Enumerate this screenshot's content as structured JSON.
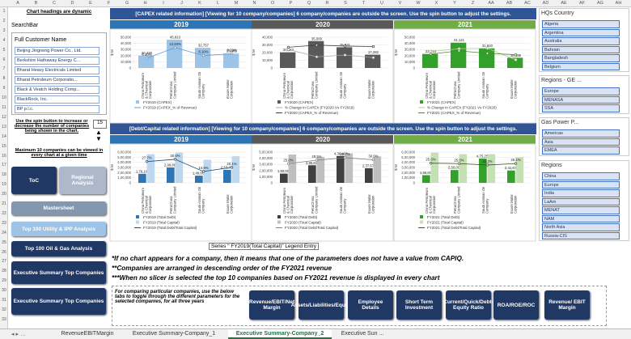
{
  "columns": [
    "A",
    "B",
    "C",
    "D",
    "E",
    "F",
    "G",
    "H",
    "I",
    "J",
    "K",
    "L",
    "M",
    "N",
    "O",
    "P",
    "Q",
    "R",
    "S",
    "T",
    "U",
    "V",
    "W",
    "X",
    "Y",
    "Z",
    "AA",
    "AB",
    "AC",
    "AD",
    "AE",
    "AF",
    "AG",
    "AH"
  ],
  "rows": [
    1,
    2,
    3,
    4,
    5,
    6,
    7,
    8,
    9,
    10,
    11,
    12,
    13,
    14,
    15,
    16,
    17,
    18,
    19,
    20,
    21,
    22,
    23,
    24,
    25,
    26,
    27,
    28,
    29,
    30,
    31,
    32,
    33
  ],
  "left_panel": {
    "note": "Chart headings are dynamic",
    "search": "SearchBar",
    "slicer_title": "Full Customer Name",
    "items": [
      "Beijing Jingneng Power Co., Ltd.",
      "Berkshire Hathaway Energy C...",
      "Bharat Heavy Electricals Limited",
      "Bharat Petroleum Corporatio...",
      "Black & Veatch Holding Comp...",
      "BlackRock, Inc.",
      "BP p.l.c."
    ],
    "spin_text": "Use the spin button to increase or decrease the number of companies being shown in the chart.",
    "spin_value": 15,
    "max_note": "Maximum 10 companies can be viewed in every chart at a given time"
  },
  "nav_buttons": [
    "ToC",
    "Regional Analysis",
    "Mastersheet",
    "Top 100 Utility & IPP Analysis",
    "Top 100 Oil & Gas Analysis",
    "Executive Summary Top Companies",
    "Executive Summary Top Companies"
  ],
  "banners": [
    "[CAPEX related information] [Viewing for 10 company/companies] 6 company/companies are outside the screen. Use the spin button to adjust the settings.",
    "[Debt/Capital related information] [Viewing for 10 company/companies] 6 company/companies are outside the screen. Use the spin button to adjust the settings."
  ],
  "chart_data": [
    {
      "type": "bar",
      "title": "2019",
      "header_color": "#2e75b6",
      "y_label": "$ M",
      "categories": [
        "China Petroleum & Chemical Corporation",
        "PetroChina Company Limited",
        "Saudi Arabian Oil Company",
        "Exxon Mobil Corporation"
      ],
      "ylim": [
        0,
        50000
      ],
      "yticks": [
        0,
        {
          "value": 10000,
          "label": "10,000"
        },
        {
          "value": 20000,
          "label": "20,000"
        },
        {
          "value": 30000,
          "label": "30,000"
        },
        {
          "value": 40000,
          "label": "40,000"
        },
        {
          "value": 50000,
          "label": "50,000"
        }
      ],
      "y2lim": [
        0,
        20
      ],
      "series": [
        {
          "name": "FY2019 (CAPEX)",
          "color": "#9dc3e6",
          "values": [
            20330,
            45913,
            32757,
            23485
          ],
          "value_labels": [
            "20,330",
            "45,913",
            "32,757",
            "23,485"
          ]
        },
        {
          "name": "FY2019 (CAPEX_% of Revenue)",
          "color": "#5b9bd5",
          "axis": "y2",
          "values": [
            6.4,
            13.2,
            8.1,
            9.2
          ],
          "value_labels": [
            "6.40%",
            "13.20%",
            "8.10%",
            "9.20%"
          ]
        }
      ]
    },
    {
      "type": "bar",
      "title": "2020",
      "header_color": "#595959",
      "y_label": "$ M",
      "categories": [
        "China Petroleum & Chemical Corporation",
        "PetroChina Company Limited",
        "Saudi Arabian Oil Company",
        "Exxon Mobil Corporation"
      ],
      "ylim": [
        0,
        40000
      ],
      "yticks": [
        0,
        {
          "value": 10000,
          "label": "10,000"
        },
        {
          "value": 20000,
          "label": "20,000"
        },
        {
          "value": 30000,
          "label": "30,000"
        },
        {
          "value": 40000,
          "label": "40,000"
        }
      ],
      "y2lim": [
        -60,
        40
      ],
      "series": [
        {
          "name": "FY2020 (CAPEX)",
          "color": "#595959",
          "values": [
            20363,
            35000,
            26931,
            17282
          ],
          "value_labels": [
            "20,363",
            "35,000",
            "26,931",
            "17,282"
          ]
        },
        {
          "name": "% Change in CAPEX (FY2020 Vs FY2019)",
          "color": "#a6a6a6",
          "axis": "y2",
          "values": [
            0.2,
            -23.8,
            -17.8,
            -26.4
          ]
        },
        {
          "name": "FY2020 (CAPEX_% of Revenue)",
          "color": "#404040",
          "axis": "y2",
          "values": [
            7.4,
            14.3,
            11.2,
            9.7
          ]
        }
      ]
    },
    {
      "type": "bar",
      "title": "2021",
      "header_color": "#70ad47",
      "y_label": "$ M",
      "categories": [
        "China Petroleum & Chemical Corporation",
        "PetroChina Company Limited",
        "Saudi Arabian Oil Company",
        "Exxon Mobil Corporation"
      ],
      "ylim": [
        0,
        50000
      ],
      "yticks": [
        0,
        {
          "value": 10000,
          "label": "10,000"
        },
        {
          "value": 20000,
          "label": "20,000"
        },
        {
          "value": 30000,
          "label": "30,000"
        },
        {
          "value": 40000,
          "label": "40,000"
        },
        {
          "value": 50000,
          "label": "50,000"
        }
      ],
      "y2lim": [
        -20,
        40
      ],
      "series": [
        {
          "name": "FY2021 (CAPEX)",
          "color": "#33a02c",
          "values": [
            22813,
            41121,
            31920,
            16595
          ],
          "value_labels": [
            "22,813",
            "41,121",
            "31,920",
            "16,595"
          ]
        },
        {
          "name": "% Change in CAPEX (FY2021 Vs FY2020)",
          "color": "#a9d18e",
          "axis": "y2",
          "values": [
            12,
            17.5,
            18.5,
            -4
          ]
        },
        {
          "name": "FY2021 (CAPEX_% of Revenue)",
          "color": "#548235",
          "axis": "y2",
          "values": [
            7.2,
            13.4,
            8.6,
            5.8
          ]
        }
      ]
    },
    {
      "type": "bar",
      "title": "2019",
      "header_color": "#2e75b6",
      "y_label": "$ M",
      "categories": [
        "China Petroleum & Chemical Corporation",
        "PetroChina Company Limited",
        "Saudi Arabian Oil Company",
        "Exxon Mobil Corporation"
      ],
      "ylim": [
        0,
        600000
      ],
      "yticks": [
        0,
        {
          "value": 100000,
          "label": "1,00,000"
        },
        {
          "value": 200000,
          "label": "2,00,000"
        },
        {
          "value": 300000,
          "label": "3,00,000"
        },
        {
          "value": 400000,
          "label": "4,00,000"
        },
        {
          "value": 500000,
          "label": "5,00,000"
        },
        {
          "value": 600000,
          "label": "6,00,000"
        }
      ],
      "y2lim": [
        0,
        40
      ],
      "series": [
        {
          "name": "FY2019 (Total Debt)",
          "color": "#2e75b6",
          "values": [
            176183,
            299884,
            140000,
            253705
          ],
          "value_labels": [
            "1,76,183",
            "2,99,884",
            "1,40,000",
            "2,53,705"
          ]
        },
        {
          "name": "FY2019 (Total Capital)",
          "color": "#bdd7ee",
          "values": [
            560000,
            590000,
            450000,
            520000
          ]
        },
        {
          "name": "FY2019 (Total Debt/Total Capital)",
          "color": "#1f4e79",
          "axis": "y2",
          "values": [
            27.7,
            30.6,
            14.8,
            20.1
          ],
          "value_labels": [
            "27.7%",
            "30.6%",
            "14.8%",
            "20.1%"
          ]
        }
      ]
    },
    {
      "type": "bar",
      "title": "2020",
      "header_color": "#595959",
      "y_label": "$ M",
      "categories": [
        "China Petroleum & Chemical Corporation",
        "PetroChina Company Limited",
        "Saudi Arabian Oil Company",
        "Exxon Mobil Corporation"
      ],
      "ylim": [
        0,
        500000
      ],
      "yticks": [
        0,
        {
          "value": 100000,
          "label": "1,00,000"
        },
        {
          "value": 200000,
          "label": "2,00,000"
        },
        {
          "value": 300000,
          "label": "3,00,000"
        },
        {
          "value": 400000,
          "label": "4,00,000"
        },
        {
          "value": 500000,
          "label": "5,00,000"
        }
      ],
      "y2lim": [
        0,
        40
      ],
      "series": [
        {
          "name": "FY2020 (Total Debt)",
          "color": "#404040",
          "values": [
            150000,
            285830,
            436404,
            237671
          ],
          "value_labels": [
            "1,50,000",
            "2,85,830",
            "4,36,404",
            "2,37,671"
          ]
        },
        {
          "name": "FY2020 (Total Capital)",
          "color": "#bfbfbf",
          "values": [
            460000,
            420000,
            480000,
            430000
          ]
        },
        {
          "name": "FY2020 (Total Debt/Total Capital)",
          "color": "#7f7f7f",
          "axis": "y2",
          "values": [
            25,
            29.5,
            32.7,
            30
          ],
          "value_labels": [
            "25.0%",
            "29.5%",
            "32.7%",
            "30.0%"
          ]
        }
      ]
    },
    {
      "type": "bar",
      "title": "2021",
      "header_color": "#70ad47",
      "y_label": "$ M",
      "categories": [
        "China Petroleum & Chemical Corporation",
        "PetroChina Company Limited",
        "Saudi Arabian Oil Company",
        "Exxon Mobil Corporation"
      ],
      "ylim": [
        0,
        600000
      ],
      "yticks": [
        0,
        {
          "value": 100000,
          "label": "1,00,000"
        },
        {
          "value": 200000,
          "label": "2,00,000"
        },
        {
          "value": 300000,
          "label": "3,00,000"
        },
        {
          "value": 400000,
          "label": "4,00,000"
        },
        {
          "value": 500000,
          "label": "5,00,000"
        },
        {
          "value": 600000,
          "label": "6,00,000"
        }
      ],
      "y2lim": [
        0,
        40
      ],
      "series": [
        {
          "name": "FY2021 (Total Debt)",
          "color": "#33a02c",
          "values": [
            150000,
            250000,
            475250,
            241671
          ],
          "value_labels": [
            "1,50,000",
            "2,50,000",
            "4,75,250",
            "2,41,671"
          ]
        },
        {
          "name": "FY2021 (Total Capital)",
          "color": "#c5e0b4",
          "values": [
            590000,
            560000,
            560000,
            500000
          ]
        },
        {
          "name": "FY2021 (Total Debt/Total Capital)",
          "color": "#385723",
          "axis": "y2",
          "values": [
            25.6,
            25,
            23.2,
            25.1
          ],
          "value_labels": [
            "25.6%",
            "25.0%",
            "23.2%",
            "25.1%"
          ]
        }
      ]
    }
  ],
  "tooltip": "Series \" FY2019(Total Capital)\" Legend Entry",
  "notes": [
    "*If no chart appears for a company, then it means that one of the parameters does not have a value from CAPIQ.",
    "**Companies are arranged in descending order of the FY2021 revenue",
    "***When no slicer is selected the top 10 companies based on FY2021 revenue is displayed in every chart"
  ],
  "compare_text": "For comparing particular companies, use the below tabs to toggle through the different parameters for the selected companies, for all three years",
  "compare_buttons": [
    "Revenue/EBIT/Net Margin",
    "Assets/Liabilities/Equity",
    "Employee Details",
    "Short Term Investment",
    "Current/Quick/Debt-Equity Ratio",
    "ROA/ROE/ROC",
    "Revenue/ EBIT Margin"
  ],
  "slicers": [
    {
      "title": "HQs Country",
      "items": [
        "Algeria",
        "Argentina",
        "Australia",
        "Bahrain",
        "Bangladesh",
        "Belgium"
      ]
    },
    {
      "title": "Regions - GE ...",
      "items": [
        "Europe",
        "MENASA",
        "SSA"
      ]
    },
    {
      "title": "Gas Power P...",
      "items": [
        "Americas",
        "Asia",
        "EMEA"
      ]
    },
    {
      "title": "Regions",
      "items": [
        "China",
        "Europe",
        "India",
        "LaAm",
        "MENAT",
        "NAM",
        "North Asia",
        "Russia-CIS"
      ]
    }
  ],
  "sheet_tabs": [
    "RevenueEBITMargin",
    "Executive Summary-Company_1",
    "Executive Summary-Company_2",
    "Executive Sun ..."
  ]
}
